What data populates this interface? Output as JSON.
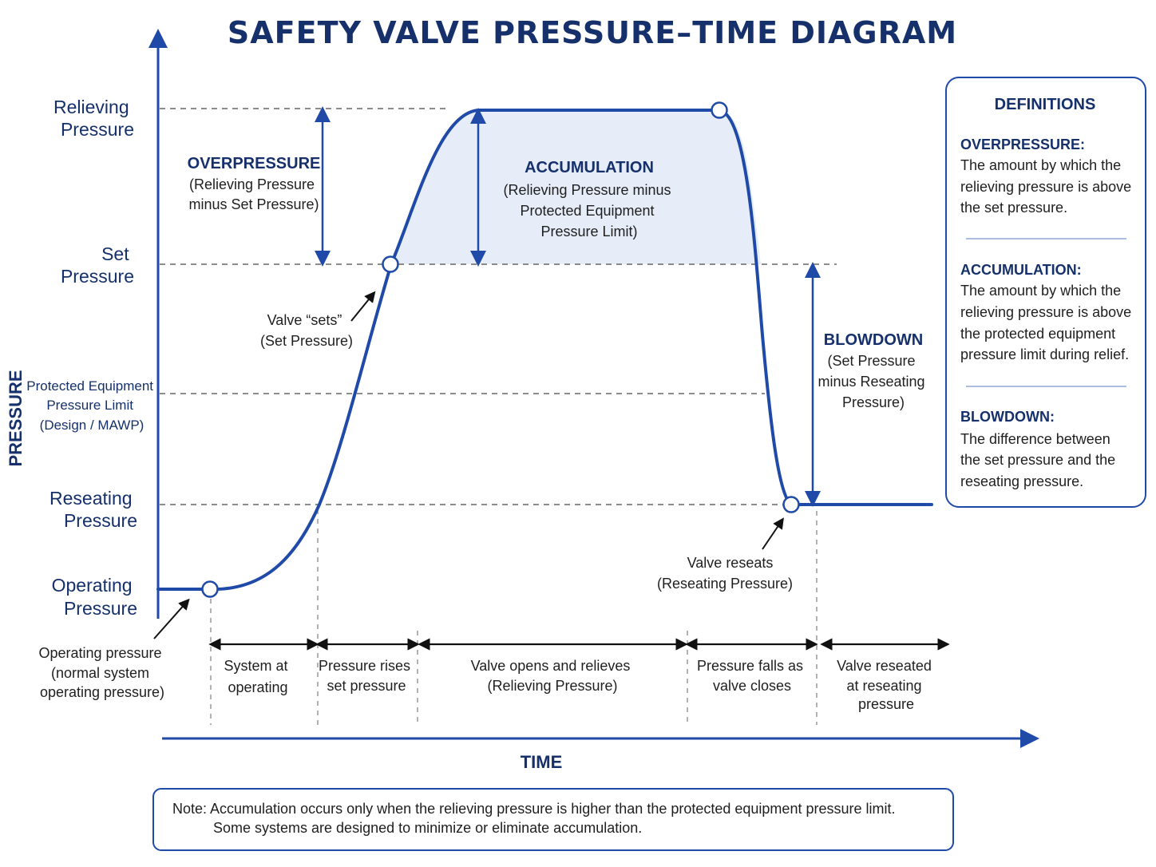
{
  "title": "SAFETY VALVE PRESSURE–TIME DIAGRAM",
  "axes": {
    "y_title": "PRESSURE",
    "x_title": "TIME"
  },
  "levels": {
    "relieving": [
      "Relieving",
      "Pressure"
    ],
    "set": [
      "Set",
      "Pressure"
    ],
    "protected": [
      "Protected Equipment",
      "Pressure Limit",
      "(Design / MAWP)"
    ],
    "reseating": [
      "Reseating",
      "Pressure"
    ],
    "operating": [
      "Operating",
      "Pressure"
    ]
  },
  "annotations": {
    "overpressure": {
      "title": "OVERPRESSURE",
      "lines": [
        "(Relieving Pressure",
        "minus Set Pressure)"
      ]
    },
    "accumulation": {
      "title": "ACCUMULATION",
      "lines": [
        "(Relieving Pressure minus",
        "Protected Equipment",
        "Pressure Limit)"
      ]
    },
    "blowdown": {
      "title": "BLOWDOWN",
      "lines": [
        "(Set Pressure",
        "minus Reseating",
        "Pressure)"
      ]
    },
    "valve_sets": [
      "Valve “sets”",
      "(Set Pressure)"
    ],
    "valve_reseats": [
      "Valve reseats",
      "(Reseating Pressure)"
    ],
    "operating_note": [
      "Operating pressure",
      "(normal system",
      "operating pressure)"
    ]
  },
  "phases": [
    [
      "System at",
      "operating"
    ],
    [
      "Pressure rises",
      "set pressure"
    ],
    [
      "Valve opens and relieves",
      "(Relieving Pressure)"
    ],
    [
      "Pressure falls as",
      "valve closes"
    ],
    [
      "Valve reseated",
      "at reseating",
      "pressure"
    ]
  ],
  "definitions": {
    "title": "DEFINITIONS",
    "items": [
      {
        "term": "OVERPRESSURE:",
        "lines": [
          "The amount by which the",
          "relieving pressure is above",
          "the set pressure."
        ]
      },
      {
        "term": "ACCUMULATION:",
        "lines": [
          "The amount by which the",
          "relieving pressure is above",
          "the protected equipment",
          "pressure limit during relief."
        ]
      },
      {
        "term": "BLOWDOWN:",
        "lines": [
          "The difference between",
          "the set pressure and the",
          "reseating pressure."
        ]
      }
    ]
  },
  "note": [
    "Note: Accumulation occurs only when the relieving pressure is higher than the protected equipment pressure limit.",
    "Some systems are designed to minimize or eliminate accumulation."
  ],
  "colors": {
    "primary": "#1f4aa8",
    "dark": "#15306b",
    "fill": "#e6edf8",
    "dash": "#666666"
  }
}
